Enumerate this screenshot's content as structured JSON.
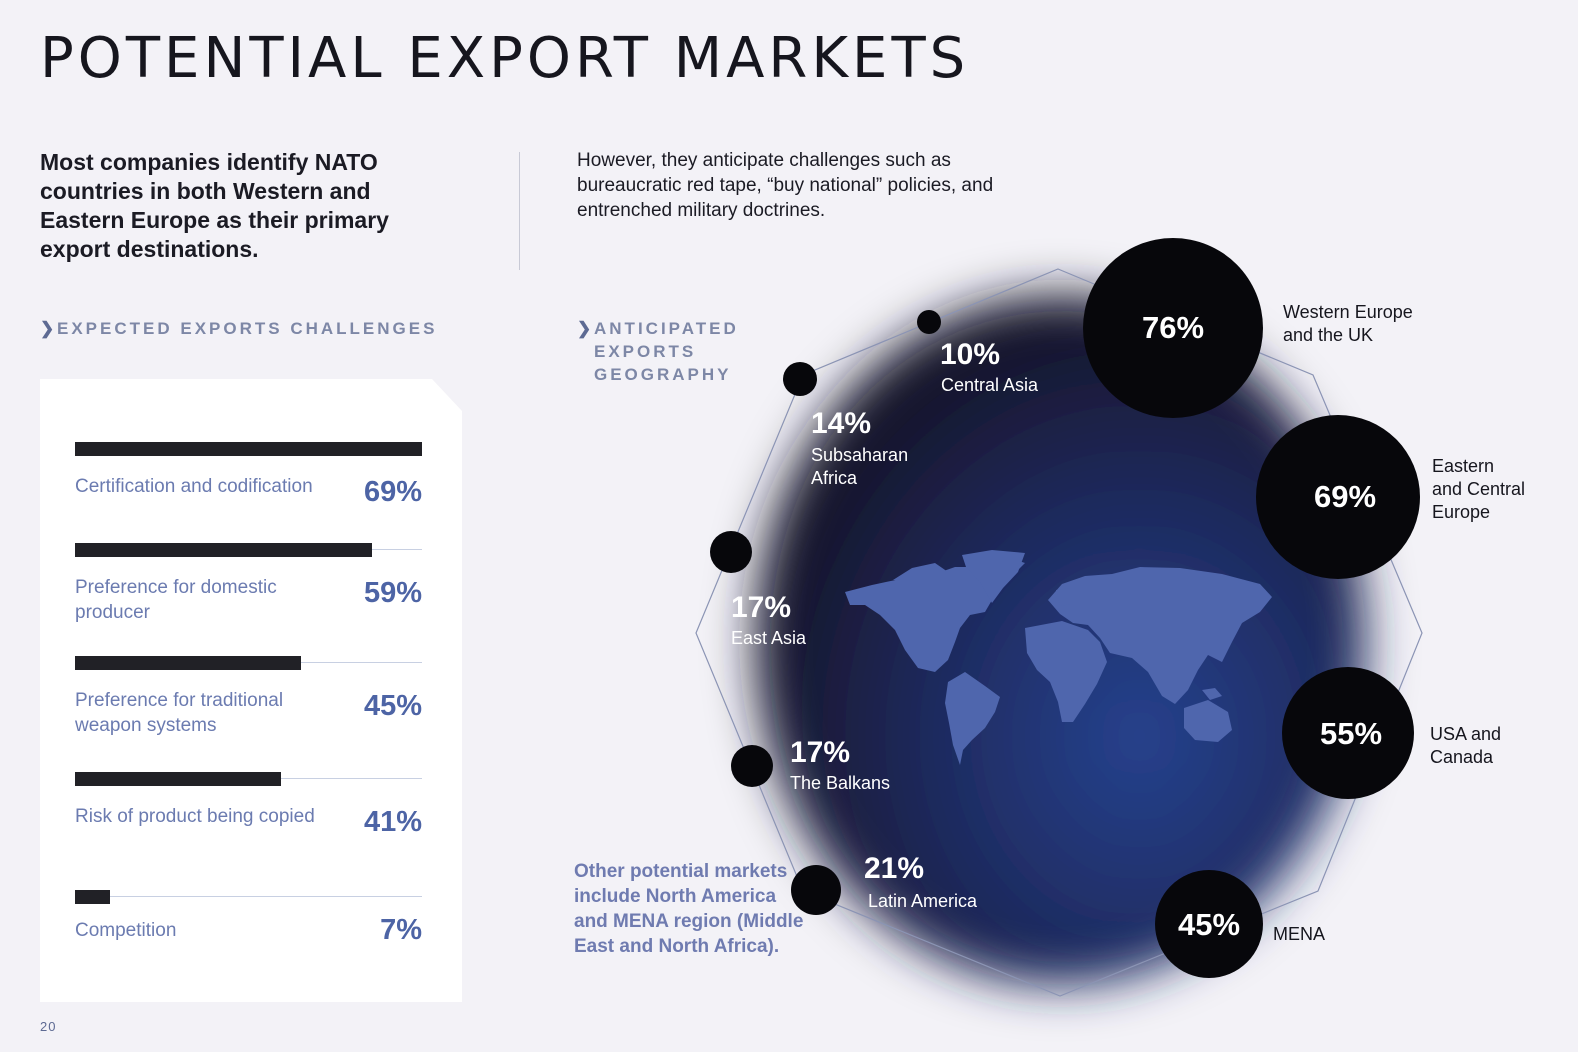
{
  "page": {
    "title": "POTENTIAL EXPORT MARKETS",
    "lead": "Most companies identify NATO countries in both Western and Eastern Europe as their primary export destinations.",
    "intro": "However, they anticipate challenges such as bureaucratic red tape, “buy national” policies, and entrenched military doctrines.",
    "page_number": "20"
  },
  "challenges": {
    "heading": "EXPECTED EXPORTS CHALLENGES",
    "items": [
      {
        "label": "Certification and codification",
        "value": "69%",
        "fraction": 0.69
      },
      {
        "label": "Preference for domestic producer",
        "value": "59%",
        "fraction": 0.59
      },
      {
        "label": "Preference for traditional weapon systems",
        "value": "45%",
        "fraction": 0.45
      },
      {
        "label": "Risk of product being copied",
        "value": "41%",
        "fraction": 0.41
      },
      {
        "label": "Competition",
        "value": "7%",
        "fraction": 0.07
      }
    ]
  },
  "geography": {
    "heading": "ANTICIPATED EXPORTS GEOGRAPHY",
    "markets": [
      {
        "name": "Western Europe and the UK",
        "value": "76%"
      },
      {
        "name": "Eastern and Central Europe",
        "value": "69%"
      },
      {
        "name": "USA and Canada",
        "value": "55%"
      },
      {
        "name": "MENA",
        "value": "45%"
      },
      {
        "name": "Latin America",
        "value": "21%"
      },
      {
        "name": "The Balkans",
        "value": "17%"
      },
      {
        "name": "East Asia",
        "value": "17%"
      },
      {
        "name": "Subsaharan Africa",
        "value": "14%"
      },
      {
        "name": "Central Asia",
        "value": "10%"
      }
    ],
    "note": "Other potential markets include North America and MENA region (Middle East and North Africa)."
  },
  "colors": {
    "bar": "#212126",
    "accent_blue": "#4d64a5",
    "map_land": "#4f66ad",
    "circle": "#07070b"
  }
}
